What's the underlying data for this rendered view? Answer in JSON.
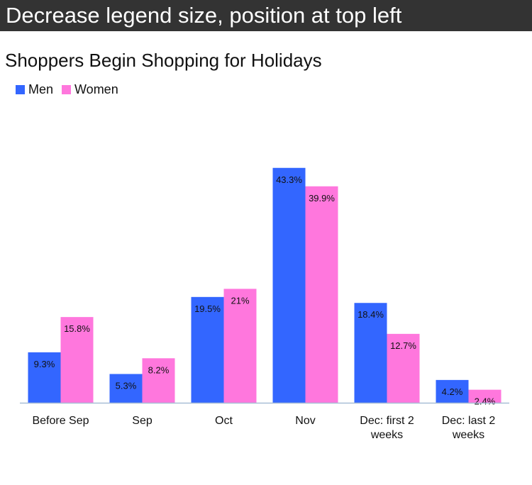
{
  "instruction": "Decrease legend size, position at top left",
  "chart_data": {
    "type": "bar",
    "title": "Shoppers Begin Shopping for Holidays",
    "categories": [
      [
        "Before Sep"
      ],
      [
        "Sep"
      ],
      [
        "Oct"
      ],
      [
        "Nov"
      ],
      [
        "Dec: first 2",
        "weeks"
      ],
      [
        "Dec: last 2",
        "weeks"
      ]
    ],
    "series": [
      {
        "name": "Men",
        "color": "#3366ff",
        "values": [
          9.3,
          5.3,
          19.5,
          43.3,
          18.4,
          4.2
        ],
        "labels": [
          "9.3%",
          "5.3%",
          "19.5%",
          "43.3%",
          "18.4%",
          "4.2%"
        ]
      },
      {
        "name": "Women",
        "color": "#ff77dd",
        "values": [
          15.8,
          8.2,
          21,
          39.9,
          12.7,
          2.4
        ],
        "labels": [
          "15.8%",
          "8.2%",
          "21%",
          "39.9%",
          "12.7%",
          "2.4%"
        ]
      }
    ],
    "ylim": [
      0,
      45
    ],
    "legend_position": "top-left",
    "grid": false,
    "xlabel": "",
    "ylabel": ""
  }
}
